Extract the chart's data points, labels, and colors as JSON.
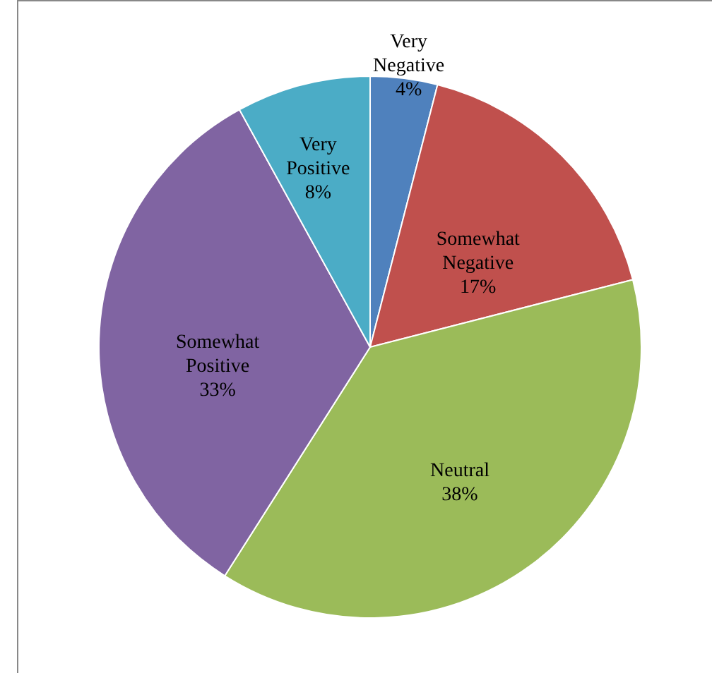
{
  "chart_data": {
    "type": "pie",
    "categories": [
      "Very Negative",
      "Somewhat Negative",
      "Neutral",
      "Somewhat Positive",
      "Very Positive"
    ],
    "values": [
      4,
      17,
      38,
      33,
      8
    ],
    "colors": [
      "#4f81bd",
      "#c0504d",
      "#9bbb59",
      "#8064a2",
      "#4bacc6"
    ],
    "value_labels": [
      "4%",
      "17%",
      "38%",
      "33%",
      "8%"
    ]
  }
}
